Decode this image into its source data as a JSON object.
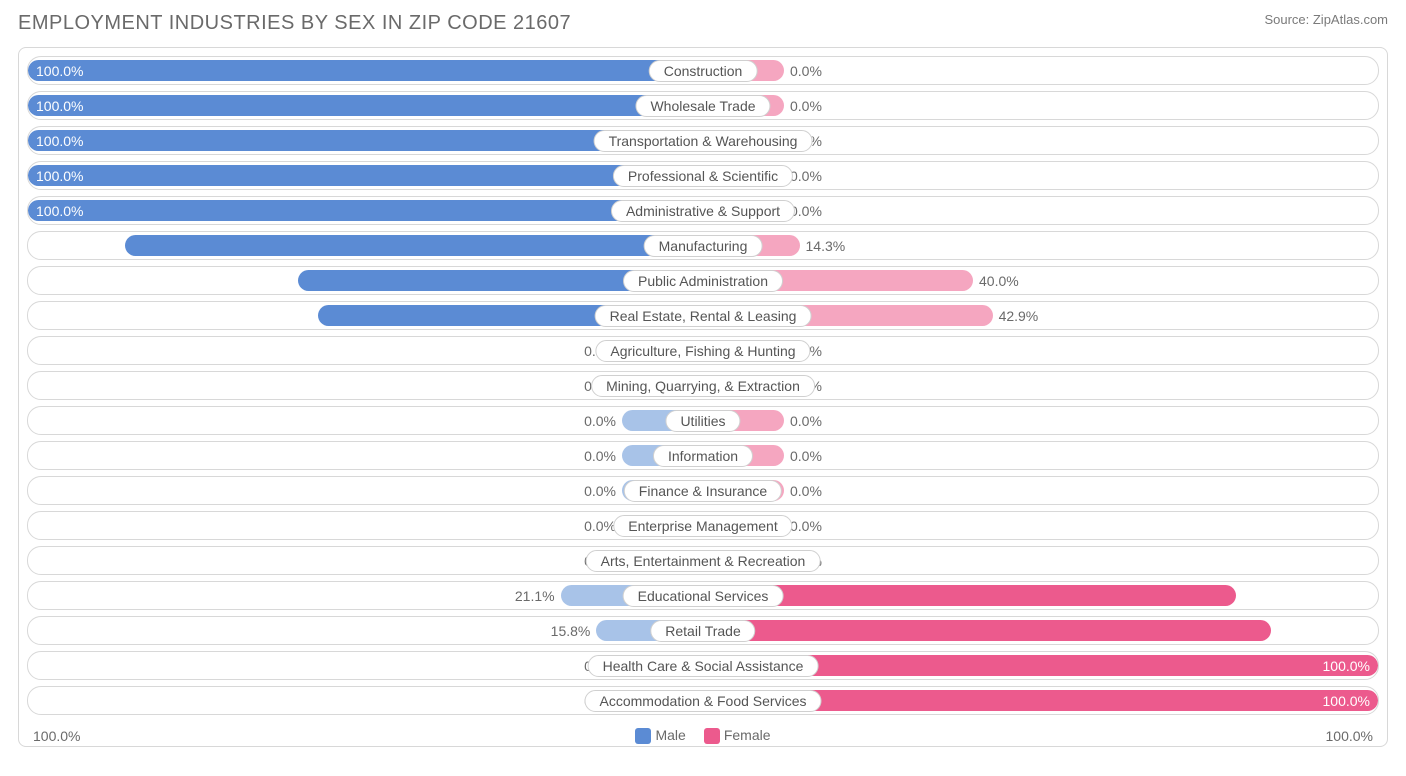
{
  "title": "EMPLOYMENT INDUSTRIES BY SEX IN ZIP CODE 21607",
  "source": "Source: ZipAtlas.com",
  "colors": {
    "male_solid": "#5b8bd4",
    "male_light": "#a8c3e8",
    "female_solid": "#ec5a8d",
    "female_light": "#f5a6c0",
    "border": "#d8d8d8",
    "text": "#6a6a6a",
    "bg": "#ffffff"
  },
  "axis": {
    "left_label": "100.0%",
    "right_label": "100.0%"
  },
  "legend": {
    "male": "Male",
    "female": "Female"
  },
  "chart": {
    "type": "diverging-bar",
    "min_bar_pct": 12,
    "rows": [
      {
        "label": "Construction",
        "male_pct": 100.0,
        "female_pct": 0.0,
        "male_text": "100.0%",
        "female_text": "0.0%"
      },
      {
        "label": "Wholesale Trade",
        "male_pct": 100.0,
        "female_pct": 0.0,
        "male_text": "100.0%",
        "female_text": "0.0%"
      },
      {
        "label": "Transportation & Warehousing",
        "male_pct": 100.0,
        "female_pct": 0.0,
        "male_text": "100.0%",
        "female_text": "0.0%"
      },
      {
        "label": "Professional & Scientific",
        "male_pct": 100.0,
        "female_pct": 0.0,
        "male_text": "100.0%",
        "female_text": "0.0%"
      },
      {
        "label": "Administrative & Support",
        "male_pct": 100.0,
        "female_pct": 0.0,
        "male_text": "100.0%",
        "female_text": "0.0%"
      },
      {
        "label": "Manufacturing",
        "male_pct": 85.7,
        "female_pct": 14.3,
        "male_text": "85.7%",
        "female_text": "14.3%"
      },
      {
        "label": "Public Administration",
        "male_pct": 60.0,
        "female_pct": 40.0,
        "male_text": "60.0%",
        "female_text": "40.0%"
      },
      {
        "label": "Real Estate, Rental & Leasing",
        "male_pct": 57.1,
        "female_pct": 42.9,
        "male_text": "57.1%",
        "female_text": "42.9%"
      },
      {
        "label": "Agriculture, Fishing & Hunting",
        "male_pct": 0.0,
        "female_pct": 0.0,
        "male_text": "0.0%",
        "female_text": "0.0%"
      },
      {
        "label": "Mining, Quarrying, & Extraction",
        "male_pct": 0.0,
        "female_pct": 0.0,
        "male_text": "0.0%",
        "female_text": "0.0%"
      },
      {
        "label": "Utilities",
        "male_pct": 0.0,
        "female_pct": 0.0,
        "male_text": "0.0%",
        "female_text": "0.0%"
      },
      {
        "label": "Information",
        "male_pct": 0.0,
        "female_pct": 0.0,
        "male_text": "0.0%",
        "female_text": "0.0%"
      },
      {
        "label": "Finance & Insurance",
        "male_pct": 0.0,
        "female_pct": 0.0,
        "male_text": "0.0%",
        "female_text": "0.0%"
      },
      {
        "label": "Enterprise Management",
        "male_pct": 0.0,
        "female_pct": 0.0,
        "male_text": "0.0%",
        "female_text": "0.0%"
      },
      {
        "label": "Arts, Entertainment & Recreation",
        "male_pct": 0.0,
        "female_pct": 0.0,
        "male_text": "0.0%",
        "female_text": "0.0%"
      },
      {
        "label": "Educational Services",
        "male_pct": 21.1,
        "female_pct": 79.0,
        "male_text": "21.1%",
        "female_text": "79.0%"
      },
      {
        "label": "Retail Trade",
        "male_pct": 15.8,
        "female_pct": 84.2,
        "male_text": "15.8%",
        "female_text": "84.2%"
      },
      {
        "label": "Health Care & Social Assistance",
        "male_pct": 0.0,
        "female_pct": 100.0,
        "male_text": "0.0%",
        "female_text": "100.0%"
      },
      {
        "label": "Accommodation & Food Services",
        "male_pct": 0.0,
        "female_pct": 100.0,
        "male_text": "0.0%",
        "female_text": "100.0%"
      }
    ]
  }
}
